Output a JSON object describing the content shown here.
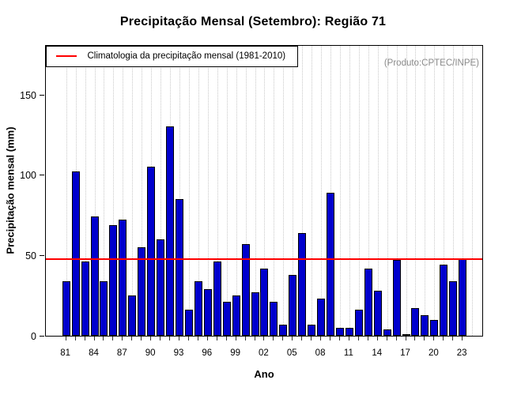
{
  "title": "Precipitação Mensal (Setembro): Região 71",
  "watermark": "(Produto:CPTEC/INPE)",
  "legend": {
    "label": "Climatologia da precipitação mensal (1981-2010)"
  },
  "axes": {
    "y_label": "Precipitação mensal (mm)",
    "x_label": "Ano",
    "y_ticks": [
      0,
      50,
      100,
      150
    ],
    "x_tick_labels": [
      "81",
      "84",
      "87",
      "90",
      "93",
      "96",
      "99",
      "02",
      "05",
      "08",
      "11",
      "14",
      "17",
      "20",
      "23"
    ]
  },
  "colors": {
    "bar": "#0000CD",
    "bar_border": "#000000",
    "climatology_line": "#FF0000",
    "grid": "#C8C8C8",
    "watermark_text": "#8A8A8A"
  },
  "chart_data": {
    "type": "bar",
    "title": "Precipitação Mensal (Setembro): Região 71",
    "xlabel": "Ano",
    "ylabel": "Precipitação mensal (mm)",
    "ylim": [
      0,
      181
    ],
    "grid": "vertical-dotted",
    "legend_position": "top-left",
    "categories": [
      1981,
      1982,
      1983,
      1984,
      1985,
      1986,
      1987,
      1988,
      1989,
      1990,
      1991,
      1992,
      1993,
      1994,
      1995,
      1996,
      1997,
      1998,
      1999,
      2000,
      2001,
      2002,
      2003,
      2004,
      2005,
      2006,
      2007,
      2008,
      2009,
      2010,
      2011,
      2012,
      2013,
      2014,
      2015,
      2016,
      2017,
      2018,
      2019,
      2020,
      2021,
      2022,
      2023
    ],
    "values": [
      34,
      102,
      46,
      74,
      34,
      69,
      72,
      25,
      55,
      105,
      60,
      130,
      85,
      16,
      34,
      29,
      46,
      21,
      25,
      57,
      27,
      42,
      21,
      7,
      38,
      64,
      7,
      23,
      89,
      5,
      5,
      16,
      42,
      28,
      4,
      47,
      1,
      17,
      13,
      10,
      44,
      34,
      48
    ],
    "climatology": 48
  }
}
